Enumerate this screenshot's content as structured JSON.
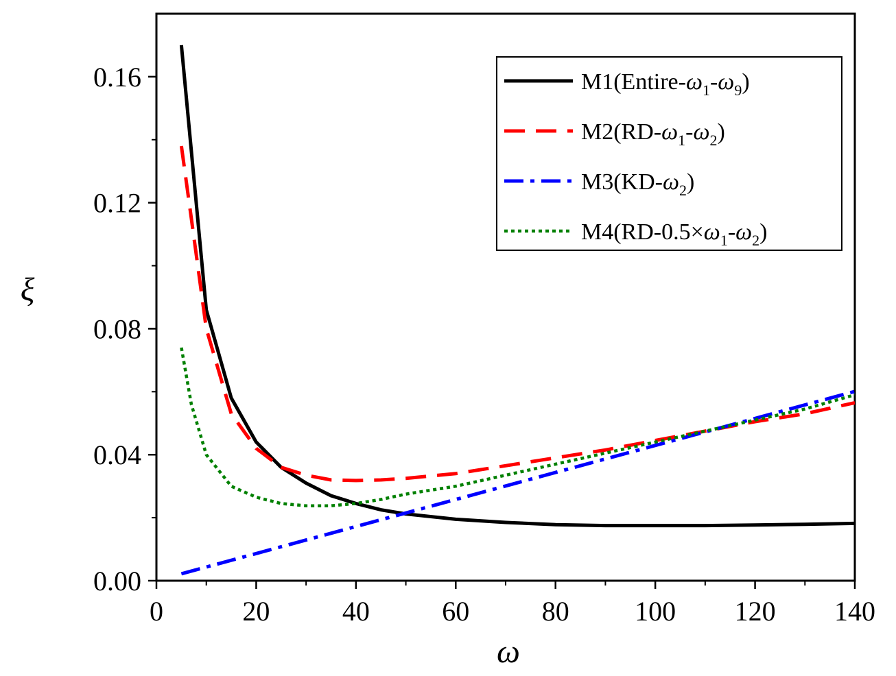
{
  "chart_data": {
    "type": "line",
    "xlabel": "ω",
    "ylabel": "ξ",
    "xlim": [
      0,
      140
    ],
    "ylim": [
      0,
      0.18
    ],
    "xticks": [
      0,
      20,
      40,
      60,
      80,
      100,
      120,
      140
    ],
    "xtick_labels": [
      "0",
      "20",
      "40",
      "60",
      "80",
      "100",
      "120",
      "140"
    ],
    "yticks": [
      0,
      0.04,
      0.08,
      0.12,
      0.16
    ],
    "ytick_labels": [
      "0.00",
      "0.04",
      "0.08",
      "0.12",
      "0.16"
    ],
    "grid": false,
    "legend_position": "top-right",
    "series": [
      {
        "name": "M1(Entire-ω1-ω9)",
        "legend": {
          "main": "M1(Entire-",
          "sym1": "ω",
          "sub1": "1",
          "mid": "-",
          "sym2": "ω",
          "sub2": "9",
          "tail": ")"
        },
        "color": "#000000",
        "style": "solid",
        "x": [
          5,
          10,
          15,
          20,
          25,
          30,
          35,
          40,
          45,
          50,
          60,
          70,
          80,
          90,
          100,
          110,
          120,
          130,
          140
        ],
        "values": [
          0.17,
          0.086,
          0.058,
          0.044,
          0.036,
          0.031,
          0.027,
          0.0245,
          0.0225,
          0.0212,
          0.0195,
          0.0185,
          0.0178,
          0.0175,
          0.0175,
          0.0175,
          0.0177,
          0.0179,
          0.0182
        ]
      },
      {
        "name": "M2(RD-ω1-ω2)",
        "legend": {
          "main": "M2(RD-",
          "sym1": "ω",
          "sub1": "1",
          "mid": "-",
          "sym2": "ω",
          "sub2": "2",
          "tail": ")"
        },
        "color": "#ff0000",
        "style": "dash",
        "x": [
          5,
          7,
          10,
          15,
          20,
          25,
          30,
          35,
          40,
          45,
          50,
          60,
          70,
          80,
          90,
          100,
          110,
          120,
          130,
          140
        ],
        "values": [
          0.138,
          0.115,
          0.08,
          0.053,
          0.042,
          0.036,
          0.0335,
          0.032,
          0.0318,
          0.032,
          0.0325,
          0.034,
          0.0365,
          0.039,
          0.0415,
          0.0445,
          0.0475,
          0.0505,
          0.053,
          0.0565
        ]
      },
      {
        "name": "M3(KD-ω2)",
        "legend": {
          "main": "M3(KD-",
          "sym1": "",
          "sub1": "",
          "mid": "",
          "sym2": "ω",
          "sub2": "2",
          "tail": ")"
        },
        "color": "#0000ff",
        "style": "dashdot",
        "x": [
          5,
          140
        ],
        "values": [
          0.0022,
          0.0601
        ]
      },
      {
        "name": "M4(RD-0.5×ω1-ω2)",
        "legend": {
          "main": "M4(RD-0.5×",
          "sym1": "ω",
          "sub1": "1",
          "mid": "-",
          "sym2": "ω",
          "sub2": "2",
          "tail": ")"
        },
        "color": "#008000",
        "style": "dot",
        "x": [
          5,
          7,
          10,
          15,
          20,
          25,
          30,
          35,
          40,
          45,
          50,
          60,
          70,
          80,
          90,
          100,
          110,
          120,
          130,
          140
        ],
        "values": [
          0.074,
          0.056,
          0.04,
          0.03,
          0.0265,
          0.0245,
          0.0238,
          0.0238,
          0.0245,
          0.0258,
          0.0275,
          0.03,
          0.0335,
          0.037,
          0.0405,
          0.044,
          0.0475,
          0.051,
          0.0545,
          0.059
        ]
      }
    ]
  }
}
